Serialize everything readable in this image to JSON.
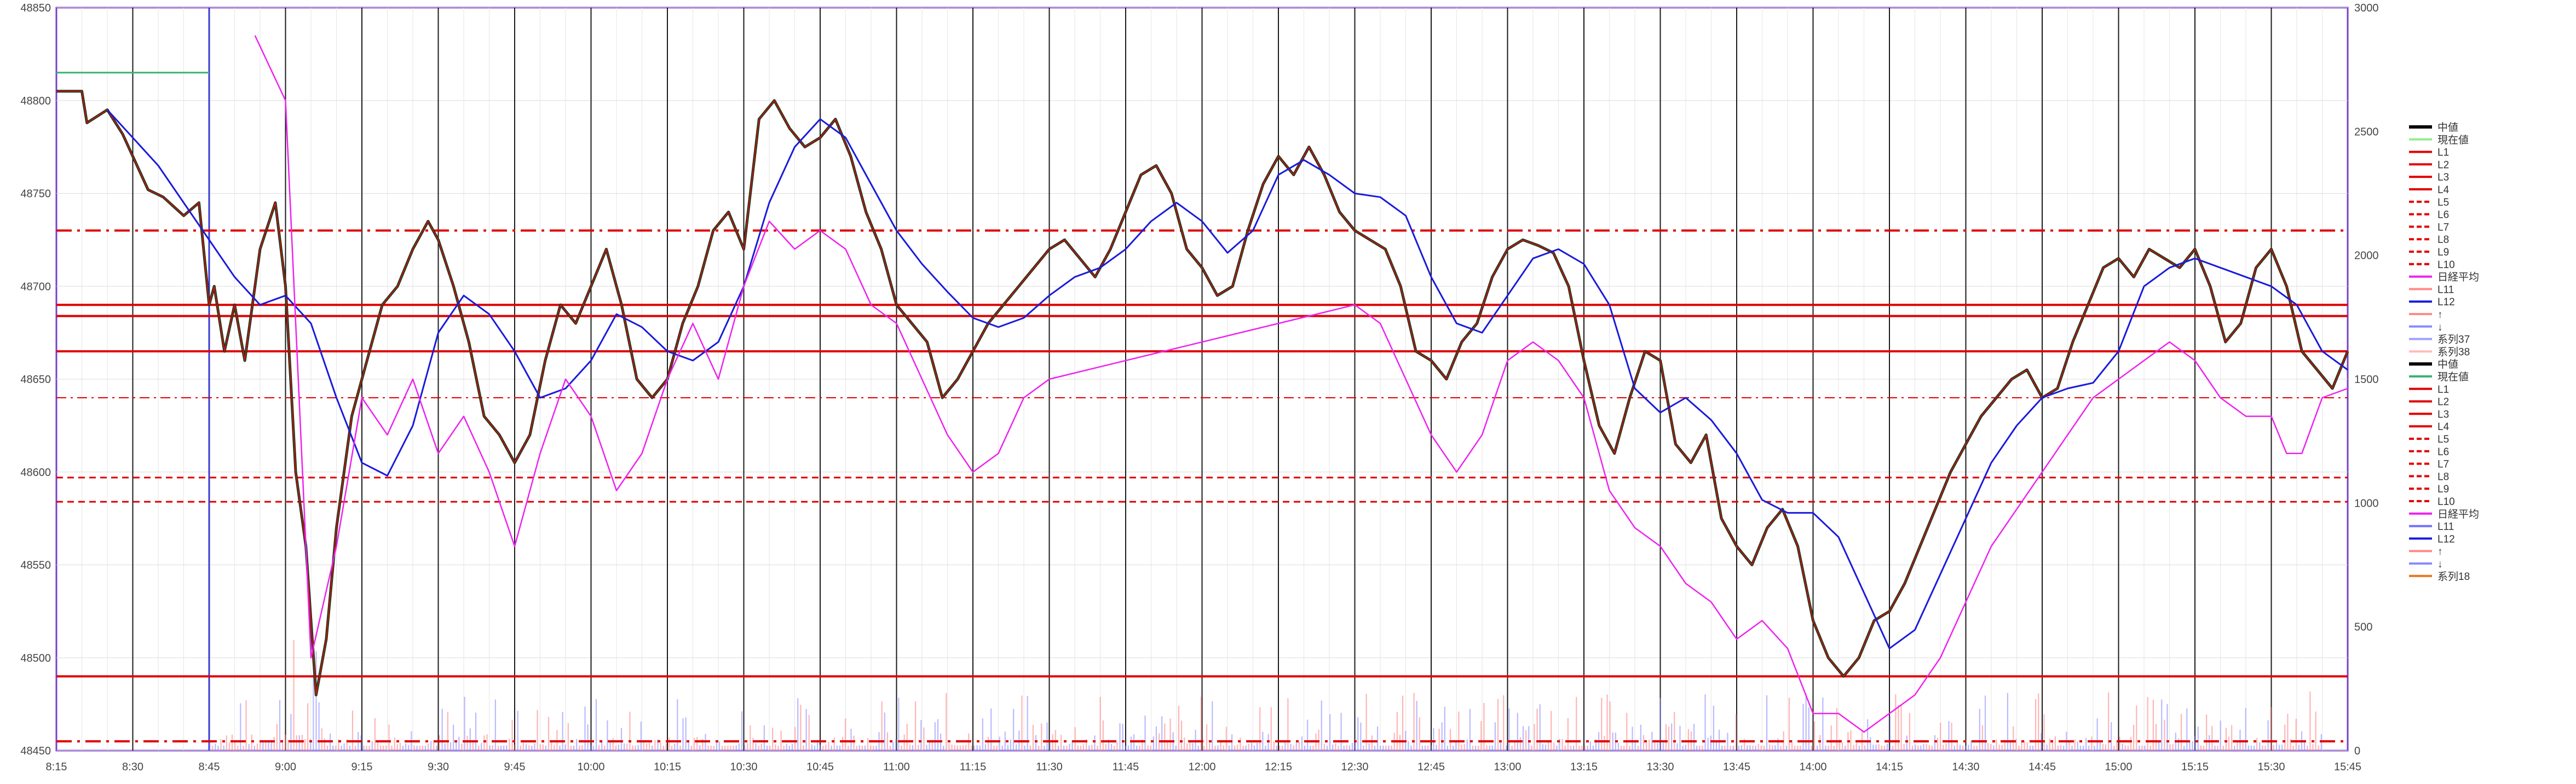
{
  "chart_data": {
    "type": "line",
    "title": "",
    "xlabel": "",
    "ylabel": "",
    "ylim": [
      48450,
      48850
    ],
    "y2lim": [
      0,
      3000
    ],
    "yticks": [
      48450,
      48500,
      48550,
      48600,
      48650,
      48700,
      48750,
      48800,
      48850
    ],
    "y2ticks": [
      0,
      500,
      1000,
      1500,
      2000,
      2500,
      3000
    ],
    "xticks": [
      "8:15",
      "8:30",
      "8:45",
      "9:00",
      "9:15",
      "9:30",
      "9:45",
      "10:00",
      "10:15",
      "10:30",
      "10:45",
      "11:00",
      "11:15",
      "11:30",
      "11:45",
      "12:00",
      "12:15",
      "12:30",
      "12:45",
      "13:00",
      "13:15",
      "13:30",
      "13:45",
      "14:00",
      "14:15",
      "14:30",
      "14:45",
      "15:00",
      "15:15",
      "15:30",
      "15:45"
    ],
    "grid": true,
    "legend_position": "right",
    "horizontal_levels": [
      {
        "value": 48730,
        "style": "dash-dot",
        "color": "#e00000"
      },
      {
        "value": 48690,
        "style": "solid",
        "color": "#e00000"
      },
      {
        "value": 48684,
        "style": "solid",
        "color": "#e00000"
      },
      {
        "value": 48665,
        "style": "solid",
        "color": "#e00000"
      },
      {
        "value": 48640,
        "style": "dash-dot-thin",
        "color": "#e00000"
      },
      {
        "value": 48597,
        "style": "dashed",
        "color": "#e00000"
      },
      {
        "value": 48584,
        "style": "dashed",
        "color": "#e00000"
      },
      {
        "value": 48490,
        "style": "solid",
        "color": "#e00000"
      },
      {
        "value": 48455,
        "style": "dash-dot",
        "color": "#e00000"
      }
    ],
    "series": [
      {
        "name": "中値",
        "color": "#0a3d1e",
        "x": [
          "8:15",
          "8:20",
          "8:21",
          "8:25",
          "8:28",
          "8:30",
          "8:33",
          "8:36",
          "8:40",
          "8:43",
          "8:45",
          "8:46",
          "8:48",
          "8:50",
          "8:52",
          "8:55",
          "8:58",
          "9:00",
          "9:02",
          "9:04",
          "9:06",
          "9:08",
          "9:10",
          "9:13",
          "9:16",
          "9:19",
          "9:22",
          "9:25",
          "9:28",
          "9:30",
          "9:33",
          "9:36",
          "9:39",
          "9:42",
          "9:45",
          "9:48",
          "9:51",
          "9:54",
          "9:57",
          "10:00",
          "10:03",
          "10:06",
          "10:09",
          "10:12",
          "10:15",
          "10:18",
          "10:21",
          "10:24",
          "10:27",
          "10:30",
          "10:33",
          "10:36",
          "10:39",
          "10:42",
          "10:45",
          "10:48",
          "10:51",
          "10:54",
          "10:57",
          "11:00",
          "11:03",
          "11:06",
          "11:09",
          "11:12",
          "11:15",
          "11:18",
          "11:21",
          "11:24",
          "11:27",
          "11:30",
          "11:33",
          "11:36",
          "11:39",
          "11:42",
          "11:45",
          "11:48",
          "11:51",
          "11:54",
          "11:57",
          "12:00",
          "12:03",
          "12:06",
          "12:09",
          "12:12",
          "12:15",
          "12:18",
          "12:21",
          "12:24",
          "12:27",
          "12:30",
          "12:33",
          "12:36",
          "12:39",
          "12:42",
          "12:45",
          "12:48",
          "12:51",
          "12:54",
          "12:57",
          "13:00",
          "13:03",
          "13:06",
          "13:09",
          "13:12",
          "13:15",
          "13:18",
          "13:21",
          "13:24",
          "13:27",
          "13:30",
          "13:33",
          "13:36",
          "13:39",
          "13:42",
          "13:45",
          "13:48",
          "13:51",
          "13:54",
          "13:57",
          "14:00",
          "14:03",
          "14:06",
          "14:09",
          "14:12",
          "14:15",
          "14:18",
          "14:21",
          "14:24",
          "14:27",
          "14:30",
          "14:33",
          "14:36",
          "14:39",
          "14:42",
          "14:45",
          "14:48",
          "14:51",
          "14:54",
          "14:57",
          "15:00",
          "15:03",
          "15:06",
          "15:09",
          "15:12",
          "15:15",
          "15:18",
          "15:21",
          "15:24",
          "15:27",
          "15:30",
          "15:33",
          "15:36",
          "15:39",
          "15:42",
          "15:45"
        ],
        "values": [
          48805,
          48805,
          48788,
          48795,
          48782,
          48770,
          48752,
          48748,
          48738,
          48745,
          48690,
          48700,
          48665,
          48690,
          48660,
          48720,
          48745,
          48700,
          48600,
          48560,
          48480,
          48510,
          48570,
          48630,
          48660,
          48690,
          48700,
          48720,
          48735,
          48725,
          48700,
          48670,
          48630,
          48620,
          48605,
          48620,
          48660,
          48690,
          48680,
          48700,
          48720,
          48690,
          48650,
          48640,
          48650,
          48680,
          48700,
          48730,
          48740,
          48720,
          48790,
          48800,
          48785,
          48775,
          48780,
          48790,
          48770,
          48740,
          48720,
          48690,
          48680,
          48670,
          48640,
          48650,
          48665,
          48680,
          48690,
          48700,
          48710,
          48720,
          48725,
          48715,
          48705,
          48720,
          48740,
          48760,
          48765,
          48750,
          48720,
          48710,
          48695,
          48700,
          48730,
          48755,
          48770,
          48760,
          48775,
          48760,
          48740,
          48730,
          48725,
          48720,
          48700,
          48665,
          48660,
          48650,
          48670,
          48680,
          48705,
          48720,
          48725,
          48722,
          48718,
          48700,
          48660,
          48625,
          48610,
          48640,
          48665,
          48660,
          48615,
          48605,
          48620,
          48575,
          48560,
          48550,
          48570,
          48580,
          48560,
          48520,
          48500,
          48490,
          48500,
          48520,
          48525,
          48540,
          48560,
          48580,
          48600,
          48615,
          48630,
          48640,
          48650,
          48655,
          48640,
          48645,
          48670,
          48690,
          48710,
          48715,
          48705,
          48720,
          48715,
          48710,
          48720,
          48700,
          48670,
          48680,
          48710,
          48720,
          48700,
          48665,
          48655,
          48645,
          48665
        ]
      },
      {
        "name": "L12",
        "color": "#1a1adc",
        "x": [
          "8:25",
          "8:30",
          "8:35",
          "8:40",
          "8:45",
          "8:50",
          "8:55",
          "9:00",
          "9:05",
          "9:10",
          "9:15",
          "9:20",
          "9:25",
          "9:30",
          "9:35",
          "9:40",
          "9:45",
          "9:50",
          "9:55",
          "10:00",
          "10:05",
          "10:10",
          "10:15",
          "10:20",
          "10:25",
          "10:30",
          "10:35",
          "10:40",
          "10:45",
          "10:50",
          "10:55",
          "11:00",
          "11:05",
          "11:10",
          "11:15",
          "11:20",
          "11:25",
          "11:30",
          "11:35",
          "11:40",
          "11:45",
          "11:50",
          "11:55",
          "12:00",
          "12:05",
          "12:10",
          "12:15",
          "12:20",
          "12:25",
          "12:30",
          "12:35",
          "12:40",
          "12:45",
          "12:50",
          "12:55",
          "13:00",
          "13:05",
          "13:10",
          "13:15",
          "13:20",
          "13:25",
          "13:30",
          "13:35",
          "13:40",
          "13:45",
          "13:50",
          "13:55",
          "14:00",
          "14:05",
          "14:10",
          "14:15",
          "14:20",
          "14:25",
          "14:30",
          "14:35",
          "14:40",
          "14:45",
          "14:50",
          "14:55",
          "15:00",
          "15:05",
          "15:10",
          "15:15",
          "15:20",
          "15:25",
          "15:30",
          "15:35",
          "15:40",
          "15:45"
        ],
        "values": [
          48795,
          48780,
          48765,
          48745,
          48725,
          48705,
          48690,
          48695,
          48680,
          48640,
          48605,
          48598,
          48625,
          48675,
          48695,
          48685,
          48665,
          48640,
          48645,
          48660,
          48685,
          48678,
          48665,
          48660,
          48670,
          48700,
          48745,
          48775,
          48790,
          48780,
          48755,
          48730,
          48712,
          48697,
          48683,
          48678,
          48683,
          48695,
          48705,
          48710,
          48720,
          48735,
          48745,
          48735,
          48718,
          48730,
          48760,
          48768,
          48760,
          48750,
          48748,
          48738,
          48705,
          48680,
          48675,
          48695,
          48715,
          48720,
          48712,
          48690,
          48645,
          48632,
          48640,
          48628,
          48610,
          48585,
          48578,
          48578,
          48565,
          48535,
          48505,
          48515,
          48545,
          48575,
          48605,
          48625,
          48640,
          48645,
          48648,
          48665,
          48700,
          48710,
          48715,
          48710,
          48705,
          48700,
          48690,
          48665,
          48655
        ]
      },
      {
        "name": "日経平均",
        "color": "#ee22ee",
        "x": [
          "8:54",
          "9:00",
          "9:05",
          "9:10",
          "9:15",
          "9:20",
          "9:25",
          "9:30",
          "9:35",
          "9:40",
          "9:45",
          "9:50",
          "9:55",
          "10:00",
          "10:05",
          "10:10",
          "10:15",
          "10:20",
          "10:25",
          "10:30",
          "10:35",
          "10:40",
          "10:45",
          "10:50",
          "10:55",
          "11:00",
          "11:05",
          "11:10",
          "11:15",
          "11:20",
          "11:25",
          "11:30",
          "12:30",
          "12:35",
          "12:40",
          "12:45",
          "12:50",
          "12:55",
          "13:00",
          "13:05",
          "13:10",
          "13:15",
          "13:20",
          "13:25",
          "13:30",
          "13:35",
          "13:40",
          "13:45",
          "13:50",
          "13:55",
          "14:00",
          "14:05",
          "14:10",
          "14:15",
          "14:20",
          "14:25",
          "14:30",
          "14:35",
          "14:40",
          "14:45",
          "14:50",
          "14:55",
          "15:00",
          "15:05",
          "15:10",
          "15:15",
          "15:20",
          "15:25",
          "15:30",
          "15:33",
          "15:36",
          "15:40",
          "15:45"
        ],
        "values": [
          48835,
          48800,
          48500,
          48560,
          48640,
          48620,
          48650,
          48610,
          48630,
          48600,
          48560,
          48610,
          48650,
          48630,
          48590,
          48610,
          48650,
          48680,
          48650,
          48700,
          48735,
          48720,
          48730,
          48720,
          48690,
          48680,
          48650,
          48620,
          48600,
          48610,
          48640,
          48650,
          48690,
          48680,
          48650,
          48620,
          48600,
          48620,
          48660,
          48670,
          48660,
          48640,
          48590,
          48570,
          48560,
          48540,
          48530,
          48510,
          48520,
          48505,
          48470,
          48470,
          48460,
          48470,
          48480,
          48500,
          48530,
          48560,
          48580,
          48600,
          48620,
          48640,
          48650,
          48660,
          48670,
          48660,
          48640,
          48630,
          48630,
          48610,
          48610,
          48640,
          48645
        ]
      },
      {
        "name": "現在値",
        "color": "#3cb371",
        "x": [
          "8:15",
          "8:45"
        ],
        "values": [
          48815,
          48815
        ]
      }
    ],
    "legend_entries": [
      "中値",
      "現在値",
      "L1",
      "L2",
      "L3",
      "L4",
      "L5",
      "L6",
      "L7",
      "L8",
      "L9",
      "L10",
      "日経平均",
      "L11",
      "L12",
      "↑",
      "↓",
      "系列37",
      "系列38",
      "中値",
      "現在値",
      "L1",
      "L2",
      "L3",
      "L4",
      "L5",
      "L6",
      "L7",
      "L8",
      "L9",
      "L10",
      "日経平均",
      "L11",
      "L12",
      "↑",
      "↓",
      "系列18"
    ],
    "legend_colors": [
      "#000000",
      "#90ee90",
      "#e00000",
      "#e00000",
      "#e00000",
      "#e00000",
      "#e00000",
      "#e00000",
      "#e00000",
      "#e00000",
      "#e00000",
      "#e00000",
      "#ee22ee",
      "#ff8a8a",
      "#1a1adc",
      "#ff8a8a",
      "#8a8aff",
      "#a0a0ff",
      "#ffbbbb",
      "#000000",
      "#3cb371",
      "#e00000",
      "#e00000",
      "#e00000",
      "#e00000",
      "#e00000",
      "#e00000",
      "#e00000",
      "#e00000",
      "#e00000",
      "#e00000",
      "#ee22ee",
      "#7070ff",
      "#1a1adc",
      "#ff8a8a",
      "#8a8aff",
      "#e87820"
    ]
  }
}
